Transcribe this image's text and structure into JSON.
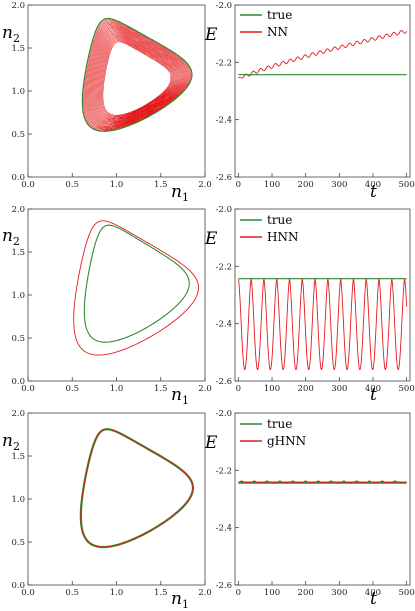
{
  "colors": {
    "true": "#2e8b2e",
    "model": "#e41a1c",
    "axis": "#444444"
  },
  "chart_data": [
    {
      "type": "line",
      "panel": "phase",
      "model": "NN",
      "xlabel": {
        "main": "n",
        "sub": "1"
      },
      "ylabel": {
        "main": "n",
        "sub": "2"
      },
      "xlim": [
        0,
        2
      ],
      "ylim": [
        0,
        2
      ],
      "x_ticks": [
        "0.0",
        "0.5",
        "1.0",
        "1.5",
        "2.0"
      ],
      "y_ticks": [
        "0.0",
        "0.5",
        "1.0",
        "1.5",
        "2.0"
      ],
      "series": [
        {
          "role": "true",
          "orbit": {
            "n1_range": [
              0.45,
              1.83
            ],
            "n2_range": [
              0.53,
              1.9
            ]
          }
        },
        {
          "role": "model",
          "orbit_start": {
            "n1_range": [
              0.45,
              1.83
            ],
            "n2_range": [
              0.53,
              1.9
            ]
          },
          "orbit_end": {
            "n1_range": [
              0.75,
              1.6
            ],
            "n2_range": [
              0.72,
              1.6
            ]
          },
          "turns": 22
        }
      ]
    },
    {
      "type": "line",
      "panel": "energy",
      "model": "NN",
      "xlabel": "t",
      "ylabel": "E",
      "xlim": [
        -10,
        510
      ],
      "ylim": [
        -2.6,
        -2.0
      ],
      "x_ticks": [
        "0",
        "100",
        "200",
        "300",
        "400",
        "500"
      ],
      "y_ticks": [
        "-2.0",
        "-2.2",
        "-2.4",
        "-2.6"
      ],
      "legend": [
        "true",
        "NN"
      ],
      "legend_position": "top-left",
      "series": [
        {
          "name": "true",
          "y_const": -2.243
        },
        {
          "name": "NN",
          "start": -2.255,
          "end": -2.085,
          "oscillation_amplitude": 0.012,
          "period": 22
        }
      ]
    },
    {
      "type": "line",
      "panel": "phase",
      "model": "HNN",
      "xlabel": {
        "main": "n",
        "sub": "1"
      },
      "ylabel": {
        "main": "n",
        "sub": "2"
      },
      "xlim": [
        0,
        2
      ],
      "ylim": [
        0,
        2
      ],
      "x_ticks": [
        "0.0",
        "0.5",
        "1.0",
        "1.5",
        "2.0"
      ],
      "y_ticks": [
        "0.0",
        "0.5",
        "1.0",
        "1.5",
        "2.0"
      ],
      "series": [
        {
          "role": "true",
          "orbit": {
            "n1_range": [
              0.48,
              1.8
            ],
            "n2_range": [
              0.45,
              1.87
            ]
          }
        },
        {
          "role": "model",
          "orbit": {
            "n1_range": [
              0.33,
              1.9
            ],
            "n2_range": [
              0.3,
              1.93
            ]
          }
        }
      ]
    },
    {
      "type": "line",
      "panel": "energy",
      "model": "HNN",
      "xlabel": "t",
      "ylabel": "E",
      "xlim": [
        -10,
        510
      ],
      "ylim": [
        -2.6,
        -2.0
      ],
      "x_ticks": [
        "0",
        "100",
        "200",
        "300",
        "400",
        "500"
      ],
      "y_ticks": [
        "-2.0",
        "-2.2",
        "-2.4",
        "-2.6"
      ],
      "legend": [
        "true",
        "HNN"
      ],
      "legend_position": "top-left",
      "series": [
        {
          "name": "true",
          "y_const": -2.243
        },
        {
          "name": "HNN",
          "max": -2.245,
          "min": -2.56,
          "period": 38
        }
      ]
    },
    {
      "type": "line",
      "panel": "phase",
      "model": "gHNN",
      "xlabel": {
        "main": "n",
        "sub": "1"
      },
      "ylabel": {
        "main": "n",
        "sub": "2"
      },
      "xlim": [
        0,
        2
      ],
      "ylim": [
        0,
        2
      ],
      "x_ticks": [
        "0.0",
        "0.5",
        "1.0",
        "1.5",
        "2.0"
      ],
      "y_ticks": [
        "0.0",
        "0.5",
        "1.0",
        "1.5",
        "2.0"
      ],
      "series": [
        {
          "role": "true",
          "orbit": {
            "n1_range": [
              0.43,
              1.84
            ],
            "n2_range": [
              0.44,
              1.87
            ]
          }
        },
        {
          "role": "model",
          "orbit": {
            "n1_range": [
              0.43,
              1.84
            ],
            "n2_range": [
              0.44,
              1.87
            ]
          }
        }
      ]
    },
    {
      "type": "line",
      "panel": "energy",
      "model": "gHNN",
      "xlabel": "t",
      "ylabel": "E",
      "xlim": [
        -10,
        510
      ],
      "ylim": [
        -2.6,
        -2.0
      ],
      "x_ticks": [
        "0",
        "100",
        "200",
        "300",
        "400",
        "500"
      ],
      "y_ticks": [
        "-2.0",
        "-2.2",
        "-2.4",
        "-2.6"
      ],
      "legend": [
        "true",
        "gHNN"
      ],
      "legend_position": "top-left",
      "series": [
        {
          "name": "true",
          "y_const": -2.243
        },
        {
          "name": "gHNN",
          "base": -2.243,
          "bump_amplitude": 0.006,
          "period": 38
        }
      ]
    }
  ]
}
